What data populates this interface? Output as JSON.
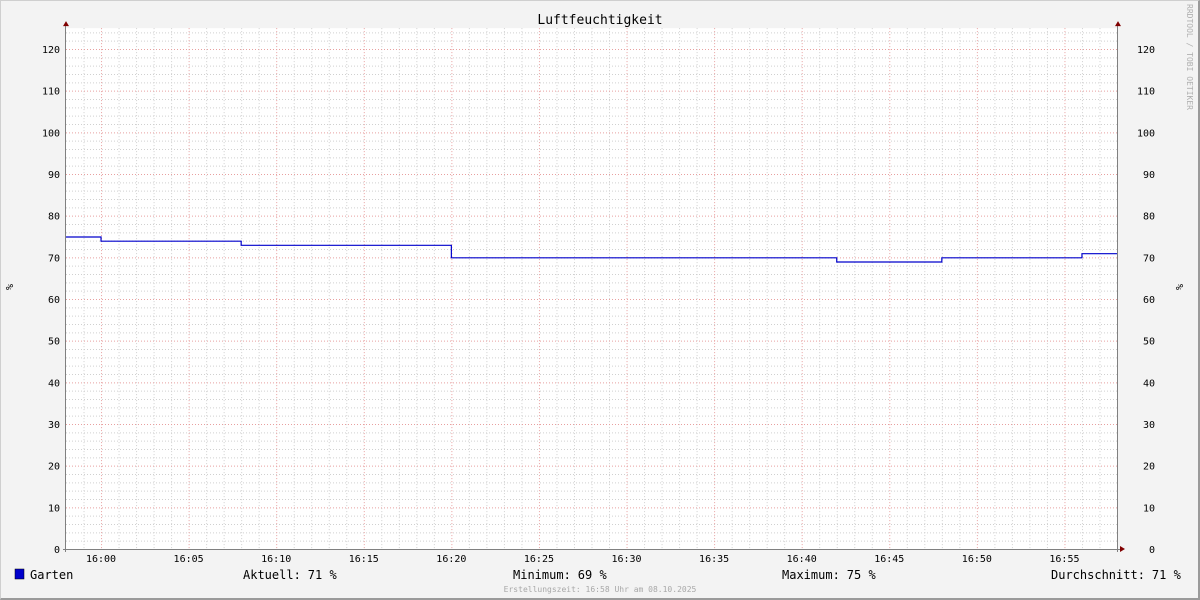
{
  "chart_data": {
    "type": "line",
    "title": "Luftfeuchtigkeit",
    "ylabel": "%",
    "ylabel_right": "%",
    "watermark": "RRDTOOL / TOBI OETIKER",
    "x_range": [
      "15:58",
      "16:58"
    ],
    "ylim": [
      0,
      125
    ],
    "x_ticks": [
      "16:00",
      "16:05",
      "16:10",
      "16:15",
      "16:20",
      "16:25",
      "16:30",
      "16:35",
      "16:40",
      "16:45",
      "16:50",
      "16:55"
    ],
    "y_ticks": [
      0,
      10,
      20,
      30,
      40,
      50,
      60,
      70,
      80,
      90,
      100,
      110,
      120
    ],
    "grid": true,
    "series": [
      {
        "name": "Garten",
        "color": "#0000cc",
        "step": true,
        "x": [
          "15:58",
          "16:00",
          "16:08",
          "16:20",
          "16:42",
          "16:48",
          "16:56",
          "16:58"
        ],
        "values": [
          75,
          74,
          73,
          70,
          69,
          70,
          71,
          71
        ]
      }
    ],
    "legend": {
      "placement": "bottom",
      "stats": [
        {
          "label": "Aktuell:",
          "value": "71 %"
        },
        {
          "label": "Minimum:",
          "value": "69 %"
        },
        {
          "label": "Maximum:",
          "value": "75 %"
        },
        {
          "label": "Durchschnitt:",
          "value": "71 %"
        }
      ]
    },
    "footer": "Erstellungszeit: 16:58 Uhr am 08.10.2025"
  }
}
